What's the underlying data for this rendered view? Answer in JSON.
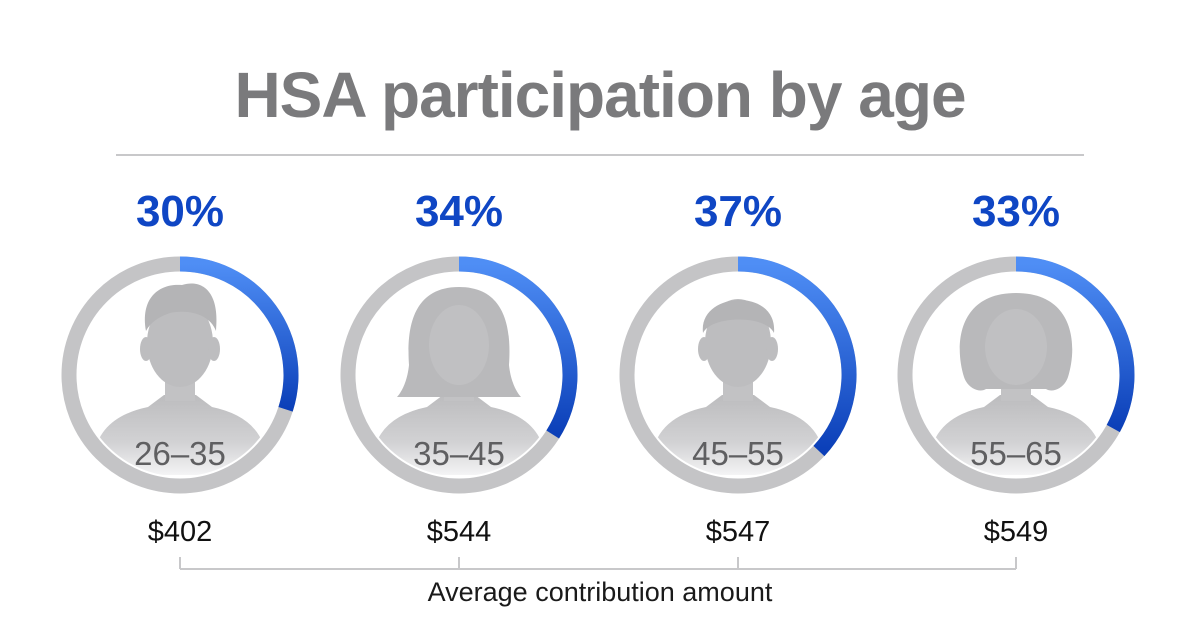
{
  "title": "HSA participation by age",
  "caption": "Average contribution amount",
  "colors": {
    "accent_light": "#4f8ef5",
    "accent_dark": "#0b3fb8",
    "ring_gray": "#c4c4c6",
    "silhouette": "#bcbcbe",
    "age_text": "#5f5f61",
    "pct_text": "#0f46c4"
  },
  "chart_data": {
    "type": "donut",
    "title": "HSA participation by age",
    "series": [
      {
        "age": "26–35",
        "participation_pct": 30,
        "participation_label": "30%",
        "avg_contribution": 402,
        "avg_contribution_label": "$402",
        "icon": "young-man-icon"
      },
      {
        "age": "35–45",
        "participation_pct": 34,
        "participation_label": "34%",
        "avg_contribution": 544,
        "avg_contribution_label": "$544",
        "icon": "woman-icon"
      },
      {
        "age": "45–55",
        "participation_pct": 37,
        "participation_label": "37%",
        "avg_contribution": 547,
        "avg_contribution_label": "$547",
        "icon": "man-icon"
      },
      {
        "age": "55–65",
        "participation_pct": 33,
        "participation_label": "33%",
        "avg_contribution": 549,
        "avg_contribution_label": "$549",
        "icon": "older-woman-icon"
      }
    ],
    "caption": "Average contribution amount"
  }
}
